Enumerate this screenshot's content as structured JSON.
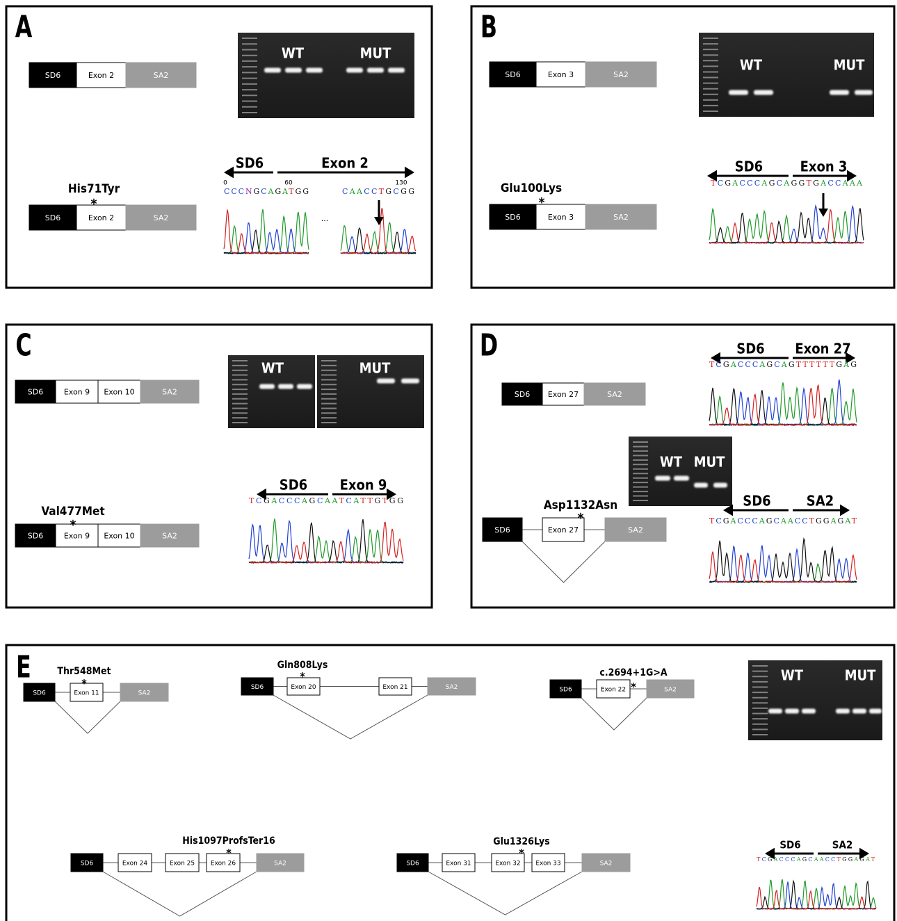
{
  "asterisk": "*",
  "panels": [
    {
      "letter": "A",
      "constructs": [
        {
          "segments": [
            "SD6",
            "Exon 2",
            "SA2"
          ]
        },
        {
          "mutation": "His71Tyr",
          "segments": [
            "SD6",
            "Exon 2",
            "SA2"
          ]
        }
      ],
      "gels": [
        {
          "labels": [
            "WT",
            "MUT"
          ]
        }
      ],
      "sequencing": [
        {
          "regions": [
            "SD6",
            "Exon 2"
          ],
          "positions": [
            "0",
            "60",
            "130"
          ],
          "sequence": [
            "CCCNGCAGATGG",
            "CAACCTGCGG"
          ],
          "gap": "..."
        }
      ]
    },
    {
      "letter": "B",
      "constructs": [
        {
          "segments": [
            "SD6",
            "Exon 3",
            "SA2"
          ]
        },
        {
          "mutation": "Glu100Lys",
          "segments": [
            "SD6",
            "Exon 3",
            "SA2"
          ]
        }
      ],
      "gels": [
        {
          "labels": [
            "WT",
            "MUT"
          ]
        }
      ],
      "sequencing": [
        {
          "regions": [
            "SD6",
            "Exon 3"
          ],
          "sequence": [
            "TCGACCCAGCAGGTGACCAAA"
          ]
        }
      ]
    },
    {
      "letter": "C",
      "constructs": [
        {
          "segments": [
            "SD6",
            "Exon 9",
            "Exon 10",
            "SA2"
          ]
        },
        {
          "mutation": "Val477Met",
          "segments": [
            "SD6",
            "Exon 9",
            "Exon 10",
            "SA2"
          ]
        }
      ],
      "gels": [
        {
          "labels": [
            "WT"
          ]
        },
        {
          "labels": [
            "MUT"
          ]
        }
      ],
      "sequencing": [
        {
          "regions": [
            "SD6",
            "Exon 9"
          ],
          "sequence": [
            "TCGACCCAGCAATCATTGTGG"
          ]
        }
      ]
    },
    {
      "letter": "D",
      "constructs": [
        {
          "segments": [
            "SD6",
            "Exon 27",
            "SA2"
          ]
        },
        {
          "mutation": "Asp1132Asn",
          "segments": [
            "SD6",
            "Exon 27",
            "SA2"
          ]
        }
      ],
      "gels": [
        {
          "labels": [
            "WT",
            "MUT"
          ]
        }
      ],
      "sequencing": [
        {
          "regions": [
            "SD6",
            "Exon 27"
          ],
          "sequence": [
            "TCGACCCAGCAGTTTTTTGAG"
          ]
        },
        {
          "regions": [
            "SD6",
            "SA2"
          ],
          "sequence": [
            "TCGACCCAGCAACCTGGAGAT"
          ]
        }
      ]
    },
    {
      "letter": "E",
      "constructs": [
        {
          "mutation": "Thr548Met",
          "segments": [
            "SD6",
            "Exon 11",
            "SA2"
          ]
        },
        {
          "mutation": "Gln808Lys",
          "segments": [
            "SD6",
            "Exon 20",
            "Exon 21",
            "SA2"
          ]
        },
        {
          "mutation": "c.2694+1G>A",
          "segments": [
            "SD6",
            "Exon 22",
            "SA2"
          ]
        },
        {
          "mutation": "His1097ProfsTer16",
          "segments": [
            "SD6",
            "Exon 24",
            "Exon 25",
            "Exon 26",
            "SA2"
          ]
        },
        {
          "mutation": "Glu1326Lys",
          "segments": [
            "SD6",
            "Exon 31",
            "Exon 32",
            "Exon 33",
            "SA2"
          ]
        }
      ],
      "gels": [
        {
          "labels": [
            "WT",
            "MUT"
          ]
        }
      ],
      "sequencing": [
        {
          "regions": [
            "SD6",
            "SA2"
          ],
          "sequence": [
            "TCGACCCAGCAACCTGGAGAT"
          ]
        }
      ]
    }
  ]
}
